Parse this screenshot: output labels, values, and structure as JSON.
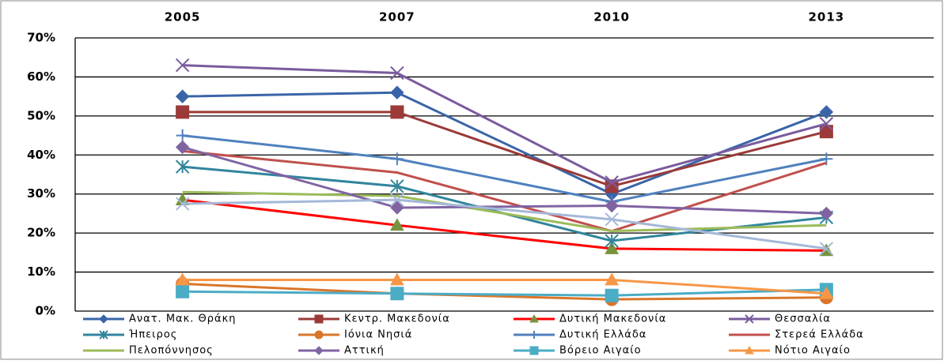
{
  "chart_data": {
    "type": "line",
    "grid": true,
    "legend": "bottom",
    "categories": [
      "2005",
      "2007",
      "2010",
      "2013"
    ],
    "ylim": [
      0,
      70
    ],
    "yticks": [
      {
        "value": 0,
        "label": "0%"
      },
      {
        "value": 10,
        "label": "10%"
      },
      {
        "value": 20,
        "label": "20%"
      },
      {
        "value": 30,
        "label": "30%"
      },
      {
        "value": 40,
        "label": "40%"
      },
      {
        "value": 50,
        "label": "50%"
      },
      {
        "value": 60,
        "label": "60%"
      },
      {
        "value": 70,
        "label": "70%"
      }
    ],
    "series": [
      {
        "name": "Ανατ. Μακ. Θράκη",
        "color": "#3a64a8",
        "marker": "diamond",
        "values": [
          55,
          56,
          30,
          51
        ]
      },
      {
        "name": "Κεντρ. Μακεδονία",
        "color": "#9b3a38",
        "marker": "square",
        "values": [
          51,
          51,
          32,
          46
        ]
      },
      {
        "name": "Δυτική Μακεδονία",
        "color": "#ff0000",
        "marker_color": "#77933c",
        "marker": "triangle",
        "values": [
          28.5,
          22,
          16,
          15.5
        ]
      },
      {
        "name": "Θεσσαλία",
        "color": "#7a5b9e",
        "marker": "x",
        "values": [
          63,
          61,
          33,
          48
        ]
      },
      {
        "name": "Ήπειρος",
        "color": "#31859c",
        "marker": "star",
        "values": [
          37,
          32,
          18,
          24
        ]
      },
      {
        "name": "Ιόνια Νησιά",
        "color": "#d9762b",
        "marker": "circle",
        "values": [
          7,
          4.5,
          3,
          3.5
        ]
      },
      {
        "name": "Δυτική Ελλάδα",
        "color": "#4f81bd",
        "marker": "plus",
        "values": [
          45,
          39,
          28,
          39
        ]
      },
      {
        "name": "Στερεά Ελλάδα",
        "color": "#c0504d",
        "marker": "none",
        "values": [
          41,
          35.5,
          20.5,
          38
        ]
      },
      {
        "name": "Πελοπόννησος",
        "color": "#9bbb59",
        "marker": "none",
        "values": [
          30.5,
          29.5,
          20.5,
          22
        ]
      },
      {
        "name": "Αττική",
        "color": "#8064a2",
        "marker": "diamond",
        "values": [
          42,
          26.5,
          27,
          25
        ]
      },
      {
        "name": "Βόρειο Αιγαίο",
        "color": "#4bacc6",
        "marker": "square",
        "values": [
          5,
          4.5,
          4,
          5.5
        ]
      },
      {
        "name": "Νότιο Αιγαίο",
        "color": "#f79646",
        "marker": "triangle",
        "values": [
          8,
          8,
          8,
          4.5
        ]
      },
      {
        "color": "#a5b8d9",
        "marker": "x",
        "values": [
          27.5,
          28.5,
          23.5,
          16
        ]
      }
    ]
  }
}
